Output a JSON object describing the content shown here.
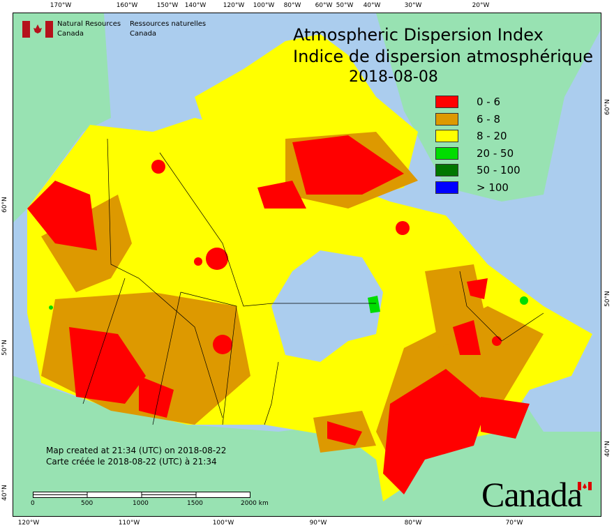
{
  "title_en": "Atmospheric Dispersion Index",
  "title_fr": "Indice de dispersion atmosphérique",
  "date": "2018-08-08",
  "agency": {
    "en_line1": "Natural Resources",
    "en_line2": "Canada",
    "fr_line1": "Ressources naturelles",
    "fr_line2": "Canada"
  },
  "legend": [
    {
      "label": "0 - 6",
      "color": "#ff0000"
    },
    {
      "label": "6 - 8",
      "color": "#dd9900"
    },
    {
      "label": "8 - 20",
      "color": "#ffff00"
    },
    {
      "label": "20 - 50",
      "color": "#00dd00"
    },
    {
      "label": "50 - 100",
      "color": "#007700"
    },
    {
      "label": "> 100",
      "color": "#0000ff"
    }
  ],
  "created_en": "Map created at 21:34 (UTC) on 2018-08-22",
  "created_fr": "Carte créée le 2018-08-22 (UTC) à 21:34",
  "scale": {
    "labels": [
      "0",
      "500",
      "1000",
      "1500",
      "2000 km"
    ]
  },
  "wordmark": "Canada",
  "axes": {
    "top": [
      "170°W",
      "160°W",
      "150°W",
      "140°W",
      "120°W",
      "100°W",
      "80°W",
      "60°W",
      "50°W",
      "40°W",
      "30°W",
      "20°W"
    ],
    "bottom": [
      "120°W",
      "110°W",
      "100°W",
      "90°W",
      "80°W",
      "70°W"
    ],
    "left": [
      "60°N",
      "50°N",
      "40°N"
    ],
    "right": [
      "60°N",
      "50°N",
      "40°N"
    ]
  },
  "colors": {
    "ocean": "#abcdee",
    "land": "#98e2b2",
    "border": "#000000"
  }
}
